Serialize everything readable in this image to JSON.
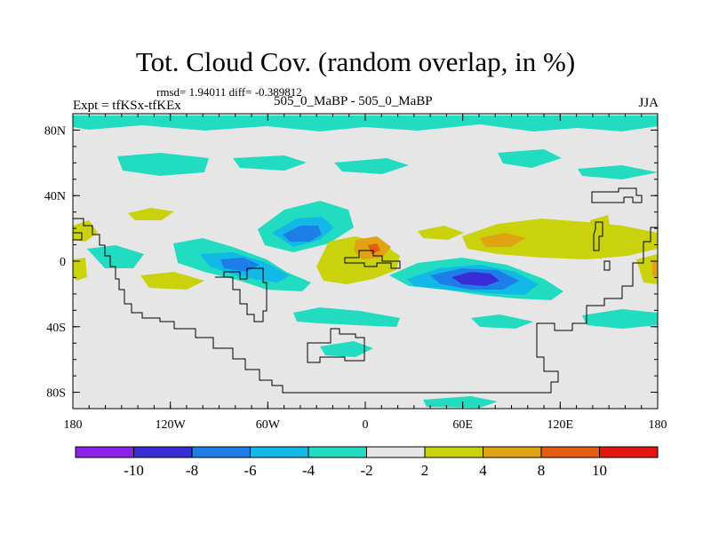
{
  "title": "Tot. Cloud Cov. (random overlap, in %)",
  "stats": "rmsd= 1.94011 diff= -0.389812",
  "experiment_label": "Expt = tfKSx-tfKEx",
  "experiment_diff": "505_0_MaBP - 505_0_MaBP",
  "season": "JJA",
  "map": {
    "projection": "cylindrical equidistant",
    "lon_range": [
      -180,
      180
    ],
    "lat_range": [
      -90,
      90
    ],
    "lon_ticks": [
      {
        "value": -180,
        "label": "180"
      },
      {
        "value": -120,
        "label": "120W"
      },
      {
        "value": -60,
        "label": "60W"
      },
      {
        "value": 0,
        "label": "0"
      },
      {
        "value": 60,
        "label": "60E"
      },
      {
        "value": 120,
        "label": "120E"
      },
      {
        "value": 180,
        "label": "180"
      }
    ],
    "lat_ticks": [
      {
        "value": 80,
        "label": "80N"
      },
      {
        "value": 40,
        "label": "40N"
      },
      {
        "value": 0,
        "label": "0"
      },
      {
        "value": -40,
        "label": "40S"
      },
      {
        "value": -80,
        "label": "80S"
      }
    ],
    "background_color": "#e6e6e6",
    "coastline_color": "#000000"
  },
  "colorbar": {
    "bins": [
      {
        "color": "#8b22e8"
      },
      {
        "color": "#3a2bd8"
      },
      {
        "color": "#1e7ee8"
      },
      {
        "color": "#12b8e6"
      },
      {
        "color": "#21dcc0"
      },
      {
        "color": "#e6e6e6"
      },
      {
        "color": "#c9d20a"
      },
      {
        "color": "#e2a313"
      },
      {
        "color": "#e65c12"
      },
      {
        "color": "#e3170f"
      }
    ],
    "labels": [
      "-10",
      "-8",
      "-6",
      "-4",
      "-2",
      "2",
      "4",
      "8",
      "10"
    ]
  },
  "anomaly_fields": [
    {
      "name": "pacific-northwest-cyan",
      "level": -3,
      "color": "#21dcc0",
      "lon": -135,
      "lat": -5
    },
    {
      "name": "pacific-subtropical-cyan",
      "level": -5,
      "color": "#12b8e6",
      "lon": -90,
      "lat": -2
    },
    {
      "name": "atlantic-north-cyan",
      "level": -4,
      "color": "#21dcc0",
      "lon": -40,
      "lat": 20
    },
    {
      "name": "atlantic-north-blue",
      "level": -6,
      "color": "#1e7ee8",
      "lon": -38,
      "lat": 18
    },
    {
      "name": "indian-ocean-cyan",
      "level": -5,
      "color": "#12b8e6",
      "lon": 65,
      "lat": -10
    },
    {
      "name": "indian-ocean-blue",
      "level": -9,
      "color": "#3a2bd8",
      "lon": 65,
      "lat": -10
    },
    {
      "name": "africa-yellow",
      "level": 3,
      "color": "#c9d20a",
      "lon": 5,
      "lat": 2
    },
    {
      "name": "africa-orange",
      "level": 6,
      "color": "#e2a313",
      "lon": 5,
      "lat": 5
    },
    {
      "name": "asia-yellow",
      "level": 3,
      "color": "#c9d20a",
      "lon": 90,
      "lat": 10
    },
    {
      "name": "asia-orange",
      "level": 6,
      "color": "#e2a313",
      "lon": 80,
      "lat": 12
    },
    {
      "name": "arctic-cyan",
      "level": -3,
      "color": "#21dcc0",
      "lon": 0,
      "lat": 80
    }
  ]
}
